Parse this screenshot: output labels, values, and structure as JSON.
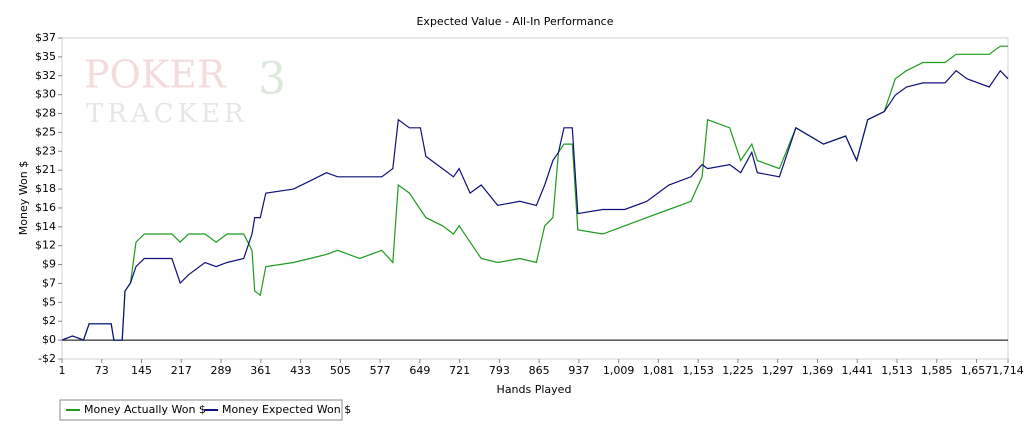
{
  "chart_data": {
    "type": "line",
    "title": "Expected Value - All-In Performance",
    "watermark": [
      "POKER",
      "3",
      "TRACKER"
    ],
    "x_label": "Hands Played",
    "y_label": "Money Won $",
    "x": [
      1,
      20,
      40,
      50,
      90,
      95,
      110,
      115,
      125,
      135,
      150,
      200,
      215,
      230,
      260,
      280,
      300,
      330,
      345,
      350,
      360,
      370,
      420,
      450,
      480,
      500,
      540,
      580,
      600,
      610,
      630,
      650,
      660,
      690,
      710,
      720,
      740,
      760,
      790,
      830,
      860,
      875,
      890,
      900,
      910,
      925,
      935,
      980,
      1020,
      1060,
      1100,
      1140,
      1160,
      1170,
      1210,
      1230,
      1250,
      1260,
      1300,
      1330,
      1380,
      1420,
      1440,
      1460,
      1490,
      1510,
      1530,
      1560,
      1600,
      1620,
      1640,
      1680,
      1700,
      1714
    ],
    "series": [
      {
        "name": "Money Actually Won $",
        "color": "#1f9a1f",
        "values": [
          0,
          0.5,
          0,
          2,
          2,
          0,
          0,
          6,
          7,
          12,
          13,
          13,
          12,
          13,
          13,
          12,
          13,
          13,
          11,
          6,
          5.5,
          9,
          9.5,
          10,
          10.5,
          11,
          10,
          11,
          9.5,
          19,
          18,
          16,
          15,
          14,
          13,
          14,
          12,
          10,
          9.5,
          10,
          9.5,
          14,
          15,
          23,
          24,
          24,
          13.5,
          13,
          14,
          15,
          16,
          17,
          20,
          27,
          26,
          22,
          24,
          22,
          21,
          26,
          24,
          25,
          22,
          27,
          28,
          32,
          33,
          34,
          34,
          35,
          35,
          35,
          36,
          36
        ]
      },
      {
        "name": "Money Expected Won $",
        "color": "#10107a",
        "values": [
          0,
          0.5,
          0,
          2,
          2,
          0,
          0,
          6,
          7,
          9,
          10,
          10,
          7,
          8,
          9.5,
          9,
          9.5,
          10,
          13,
          15,
          15,
          18,
          18.5,
          19.5,
          20.5,
          20,
          20,
          20,
          21,
          27,
          26,
          26,
          22.5,
          21,
          20,
          21,
          18,
          19,
          16.5,
          17,
          16.5,
          19,
          22,
          23,
          26,
          26,
          15.5,
          16,
          16,
          17,
          19,
          20,
          21.5,
          21,
          21.5,
          20.5,
          23,
          20.5,
          20,
          26,
          24,
          25,
          22,
          27,
          28,
          30,
          31,
          31.5,
          31.5,
          33,
          32,
          31,
          33,
          32
        ]
      }
    ],
    "xlim": [
      1,
      1714
    ],
    "xticks": [
      1,
      73,
      145,
      217,
      289,
      361,
      433,
      505,
      577,
      649,
      721,
      793,
      865,
      937,
      {
        "value": 1009,
        "label": "1,009"
      },
      {
        "value": 1081,
        "label": "1,081"
      },
      {
        "value": 1153,
        "label": "1,153"
      },
      {
        "value": 1225,
        "label": "1,225"
      },
      {
        "value": 1297,
        "label": "1,297"
      },
      {
        "value": 1369,
        "label": "1,369"
      },
      {
        "value": 1441,
        "label": "1,441"
      },
      {
        "value": 1513,
        "label": "1,513"
      },
      {
        "value": 1585,
        "label": "1,585"
      },
      {
        "value": 1657,
        "label": "1,657"
      },
      {
        "value": 1714,
        "label": "1,714"
      }
    ],
    "ylim": [
      -2.3125,
      37
    ],
    "yticks": [
      {
        "value": -2.3125,
        "label": "-$2"
      },
      {
        "value": 0,
        "label": "$0"
      },
      {
        "value": 2.3125,
        "label": "$2"
      },
      {
        "value": 4.625,
        "label": "$5"
      },
      {
        "value": 6.9375,
        "label": "$7"
      },
      {
        "value": 9.25,
        "label": "$9"
      },
      {
        "value": 11.5625,
        "label": "$12"
      },
      {
        "value": 13.875,
        "label": "$14"
      },
      {
        "value": 16.1875,
        "label": "$16"
      },
      {
        "value": 18.5,
        "label": "$18"
      },
      {
        "value": 20.8125,
        "label": "$21"
      },
      {
        "value": 23.125,
        "label": "$23"
      },
      {
        "value": 25.4375,
        "label": "$25"
      },
      {
        "value": 27.75,
        "label": "$28"
      },
      {
        "value": 30.0625,
        "label": "$30"
      },
      {
        "value": 32.375,
        "label": "$32"
      },
      {
        "value": 34.6875,
        "label": "$35"
      },
      {
        "value": 37,
        "label": "$37"
      }
    ],
    "zero_line": 0,
    "legend": "bottom-left"
  }
}
